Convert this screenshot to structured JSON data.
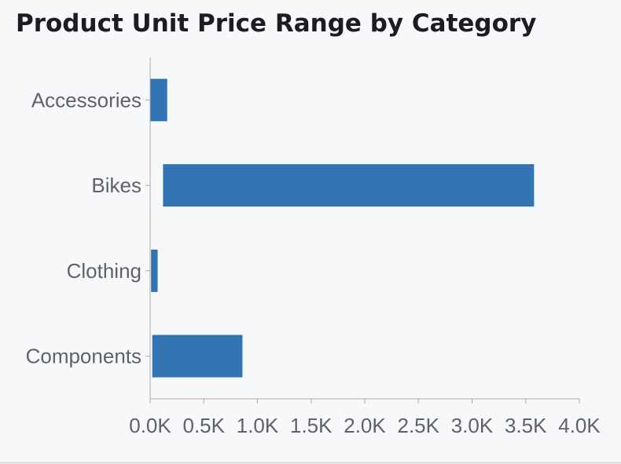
{
  "title": "Product Unit Price Range by Category",
  "colors": {
    "bar": "#3274b1",
    "axis": "#a9abaf",
    "text": "#5f6268",
    "title": "#1c1c22",
    "background": "#f7f8fa"
  },
  "chart_data": {
    "type": "bar",
    "orientation": "horizontal",
    "floating": true,
    "title": "Product Unit Price Range by Category",
    "xlabel": "",
    "ylabel": "",
    "xlim": [
      0,
      4000
    ],
    "x_ticks": [
      0,
      500,
      1000,
      1500,
      2000,
      2500,
      3000,
      3500,
      4000
    ],
    "x_tick_labels": [
      "0.0K",
      "0.5K",
      "1.0K",
      "1.5K",
      "2.0K",
      "2.5K",
      "3.0K",
      "3.5K",
      "4.0K"
    ],
    "categories": [
      "Accessories",
      "Bikes",
      "Clothing",
      "Components"
    ],
    "ranges": [
      {
        "category": "Accessories",
        "min": 2,
        "max": 159
      },
      {
        "category": "Bikes",
        "min": 120,
        "max": 3578
      },
      {
        "category": "Clothing",
        "min": 9,
        "max": 70
      },
      {
        "category": "Components",
        "min": 20,
        "max": 860
      }
    ],
    "grid": false,
    "legend": "none"
  }
}
